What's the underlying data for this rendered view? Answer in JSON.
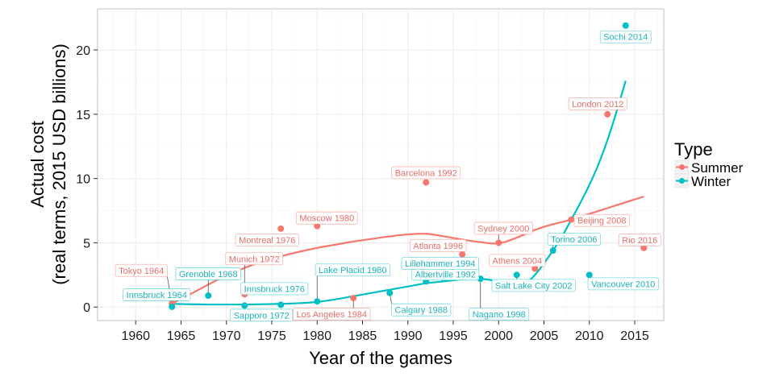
{
  "chart_data": {
    "type": "scatter",
    "title": "",
    "xlabel": "Year of the games",
    "ylabel_line1": "Actual cost",
    "ylabel_line2": "(real terms, 2015 USD billions)",
    "xlim": [
      1955.8,
      2018.2
    ],
    "ylim": [
      -1.05,
      23.2
    ],
    "x_ticks": [
      1960,
      1965,
      1970,
      1975,
      1980,
      1985,
      1990,
      1995,
      2000,
      2005,
      2010,
      2015
    ],
    "y_ticks": [
      0,
      5,
      10,
      15,
      20
    ],
    "grid": true,
    "legend": {
      "title": "Type",
      "position": "right",
      "entries": [
        {
          "name": "Summer",
          "color": "#F8766D"
        },
        {
          "name": "Winter",
          "color": "#00BFC4"
        }
      ]
    },
    "series": [
      {
        "name": "Summer",
        "color": "#F8766D",
        "label_color": "#E8706A",
        "points": [
          {
            "label": "Tokyo 1964",
            "x": 1964,
            "y": 0.28
          },
          {
            "label": "Munich 1972",
            "x": 1972,
            "y": 1.0
          },
          {
            "label": "Montreal 1976",
            "x": 1976,
            "y": 6.1
          },
          {
            "label": "Moscow 1980",
            "x": 1980,
            "y": 6.3
          },
          {
            "label": "Los Angeles 1984",
            "x": 1984,
            "y": 0.7
          },
          {
            "label": "Barcelona 1992",
            "x": 1992,
            "y": 9.7
          },
          {
            "label": "Atlanta 1996",
            "x": 1996,
            "y": 4.1
          },
          {
            "label": "Sydney 2000",
            "x": 2000,
            "y": 5.0
          },
          {
            "label": "Athens 2004",
            "x": 2004,
            "y": 3.0
          },
          {
            "label": "Beijing 2008",
            "x": 2008,
            "y": 6.8
          },
          {
            "label": "London 2012",
            "x": 2012,
            "y": 15.0
          },
          {
            "label": "Rio 2016",
            "x": 2016,
            "y": 4.6
          }
        ],
        "smooth": [
          [
            1964,
            0.28
          ],
          [
            1966,
            1.0
          ],
          [
            1968,
            1.75
          ],
          [
            1970,
            2.45
          ],
          [
            1972,
            3.05
          ],
          [
            1974,
            3.55
          ],
          [
            1976,
            3.95
          ],
          [
            1978,
            4.3
          ],
          [
            1980,
            4.6
          ],
          [
            1982,
            4.85
          ],
          [
            1984,
            5.1
          ],
          [
            1986,
            5.3
          ],
          [
            1988,
            5.5
          ],
          [
            1990,
            5.65
          ],
          [
            1992,
            5.7
          ],
          [
            1994,
            5.5
          ],
          [
            1996,
            5.25
          ],
          [
            1998,
            5.05
          ],
          [
            2000,
            4.95
          ],
          [
            2002,
            5.4
          ],
          [
            2004,
            6.0
          ],
          [
            2006,
            6.45
          ],
          [
            2008,
            6.8
          ],
          [
            2010,
            7.25
          ],
          [
            2012,
            7.7
          ],
          [
            2014,
            8.15
          ],
          [
            2016,
            8.6
          ]
        ]
      },
      {
        "name": "Winter",
        "color": "#00BFC4",
        "label_color": "#1FB5BB",
        "points": [
          {
            "label": "Innsbruck 1964",
            "x": 1964,
            "y": 0.02
          },
          {
            "label": "Grenoble 1968",
            "x": 1968,
            "y": 0.89
          },
          {
            "label": "Sapporo 1972",
            "x": 1972,
            "y": 0.12
          },
          {
            "label": "Innsbruck 1976",
            "x": 1976,
            "y": 0.18
          },
          {
            "label": "Lake Placid 1980",
            "x": 1980,
            "y": 0.44
          },
          {
            "label": "Calgary 1988",
            "x": 1988,
            "y": 1.1
          },
          {
            "label": "Albertville 1992",
            "x": 1992,
            "y": 2.0
          },
          {
            "label": "Lillehammer 1994",
            "x": 1994,
            "y": 2.2
          },
          {
            "label": "Nagano 1998",
            "x": 1998,
            "y": 2.2
          },
          {
            "label": "Salt Lake City 2002",
            "x": 2002,
            "y": 2.5
          },
          {
            "label": "Torino 2006",
            "x": 2006,
            "y": 4.4
          },
          {
            "label": "Vancouver 2010",
            "x": 2010,
            "y": 2.5
          },
          {
            "label": "Sochi 2014",
            "x": 2014,
            "y": 21.9
          }
        ],
        "smooth": [
          [
            1964,
            0.25
          ],
          [
            1966,
            0.22
          ],
          [
            1968,
            0.2
          ],
          [
            1970,
            0.2
          ],
          [
            1972,
            0.2
          ],
          [
            1974,
            0.22
          ],
          [
            1976,
            0.25
          ],
          [
            1978,
            0.3
          ],
          [
            1980,
            0.4
          ],
          [
            1982,
            0.6
          ],
          [
            1984,
            0.85
          ],
          [
            1986,
            1.1
          ],
          [
            1988,
            1.35
          ],
          [
            1990,
            1.6
          ],
          [
            1992,
            1.85
          ],
          [
            1994,
            2.0
          ],
          [
            1996,
            2.15
          ],
          [
            1998,
            2.2
          ],
          [
            2000,
            2.0
          ],
          [
            2001,
            1.8
          ],
          [
            2002,
            1.7
          ],
          [
            2003,
            1.85
          ],
          [
            2004,
            2.5
          ],
          [
            2005,
            3.4
          ],
          [
            2006,
            4.4
          ],
          [
            2007,
            5.5
          ],
          [
            2008,
            6.8
          ],
          [
            2009,
            8.1
          ],
          [
            2010,
            9.5
          ],
          [
            2011,
            11.1
          ],
          [
            2012,
            13.0
          ],
          [
            2013,
            15.2
          ],
          [
            2014,
            17.6
          ]
        ]
      }
    ]
  }
}
